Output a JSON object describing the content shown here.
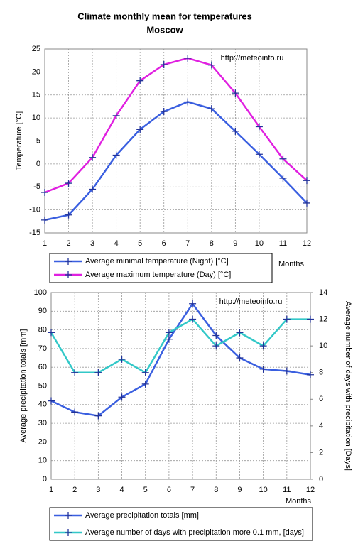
{
  "chart_data": [
    {
      "type": "line",
      "title": "Climate monthly mean for temperatures",
      "subtitle": "Moscow",
      "x": [
        1,
        2,
        3,
        4,
        5,
        6,
        7,
        8,
        9,
        10,
        11,
        12
      ],
      "xlim": [
        1,
        12
      ],
      "xticks": [
        1,
        2,
        3,
        4,
        5,
        6,
        7,
        8,
        9,
        10,
        11,
        12
      ],
      "ylim": [
        -15,
        25
      ],
      "yticks": [
        -15,
        -10,
        -5,
        0,
        5,
        10,
        15,
        20,
        25
      ],
      "xlabel": "Months",
      "ylabel": "Temperature [°C]",
      "annotation": "http://meteoinfo.ru",
      "grid": true,
      "series": [
        {
          "name": "Average minimal temperature (Night) [°C]",
          "color": "#3a5fe0",
          "values": [
            -12.2,
            -11.1,
            -5.5,
            1.9,
            7.5,
            11.4,
            13.5,
            12.0,
            7.1,
            2.1,
            -3.1,
            -8.5
          ]
        },
        {
          "name": "Average maximum temperature (Day) [°C]",
          "color": "#e020e0",
          "values": [
            -6.2,
            -4.2,
            1.4,
            10.5,
            18.1,
            21.6,
            23.0,
            21.5,
            15.4,
            8.1,
            1.1,
            -3.6
          ]
        }
      ]
    },
    {
      "type": "line",
      "x": [
        1,
        2,
        3,
        4,
        5,
        6,
        7,
        8,
        9,
        10,
        11,
        12
      ],
      "xlim": [
        1,
        12
      ],
      "xticks": [
        1,
        2,
        3,
        4,
        5,
        6,
        7,
        8,
        9,
        10,
        11,
        12
      ],
      "ylim": [
        0,
        100
      ],
      "yticks": [
        0,
        10,
        20,
        30,
        40,
        50,
        60,
        70,
        80,
        90,
        100
      ],
      "y2lim": [
        0,
        14
      ],
      "y2ticks": [
        0,
        2,
        4,
        6,
        8,
        10,
        12,
        14
      ],
      "xlabel": "Months",
      "ylabel": "Average precipitation totals [mm]",
      "y2label": "Average number of days with precipitation [Days]",
      "annotation": "http://meteoinfo.ru",
      "grid": true,
      "series": [
        {
          "name": "Average precipitation totals [mm]",
          "color": "#3a5fe0",
          "values": [
            42,
            36,
            34,
            44,
            51,
            75,
            94,
            77,
            65,
            59,
            58,
            56
          ]
        },
        {
          "name": "Average number of days with precipitation more 0.1 mm, [days]",
          "color": "#33c8c8",
          "axis": "y2",
          "values": [
            11,
            8,
            8,
            9,
            8,
            11,
            12,
            10,
            11,
            10,
            12,
            12
          ]
        }
      ]
    }
  ]
}
